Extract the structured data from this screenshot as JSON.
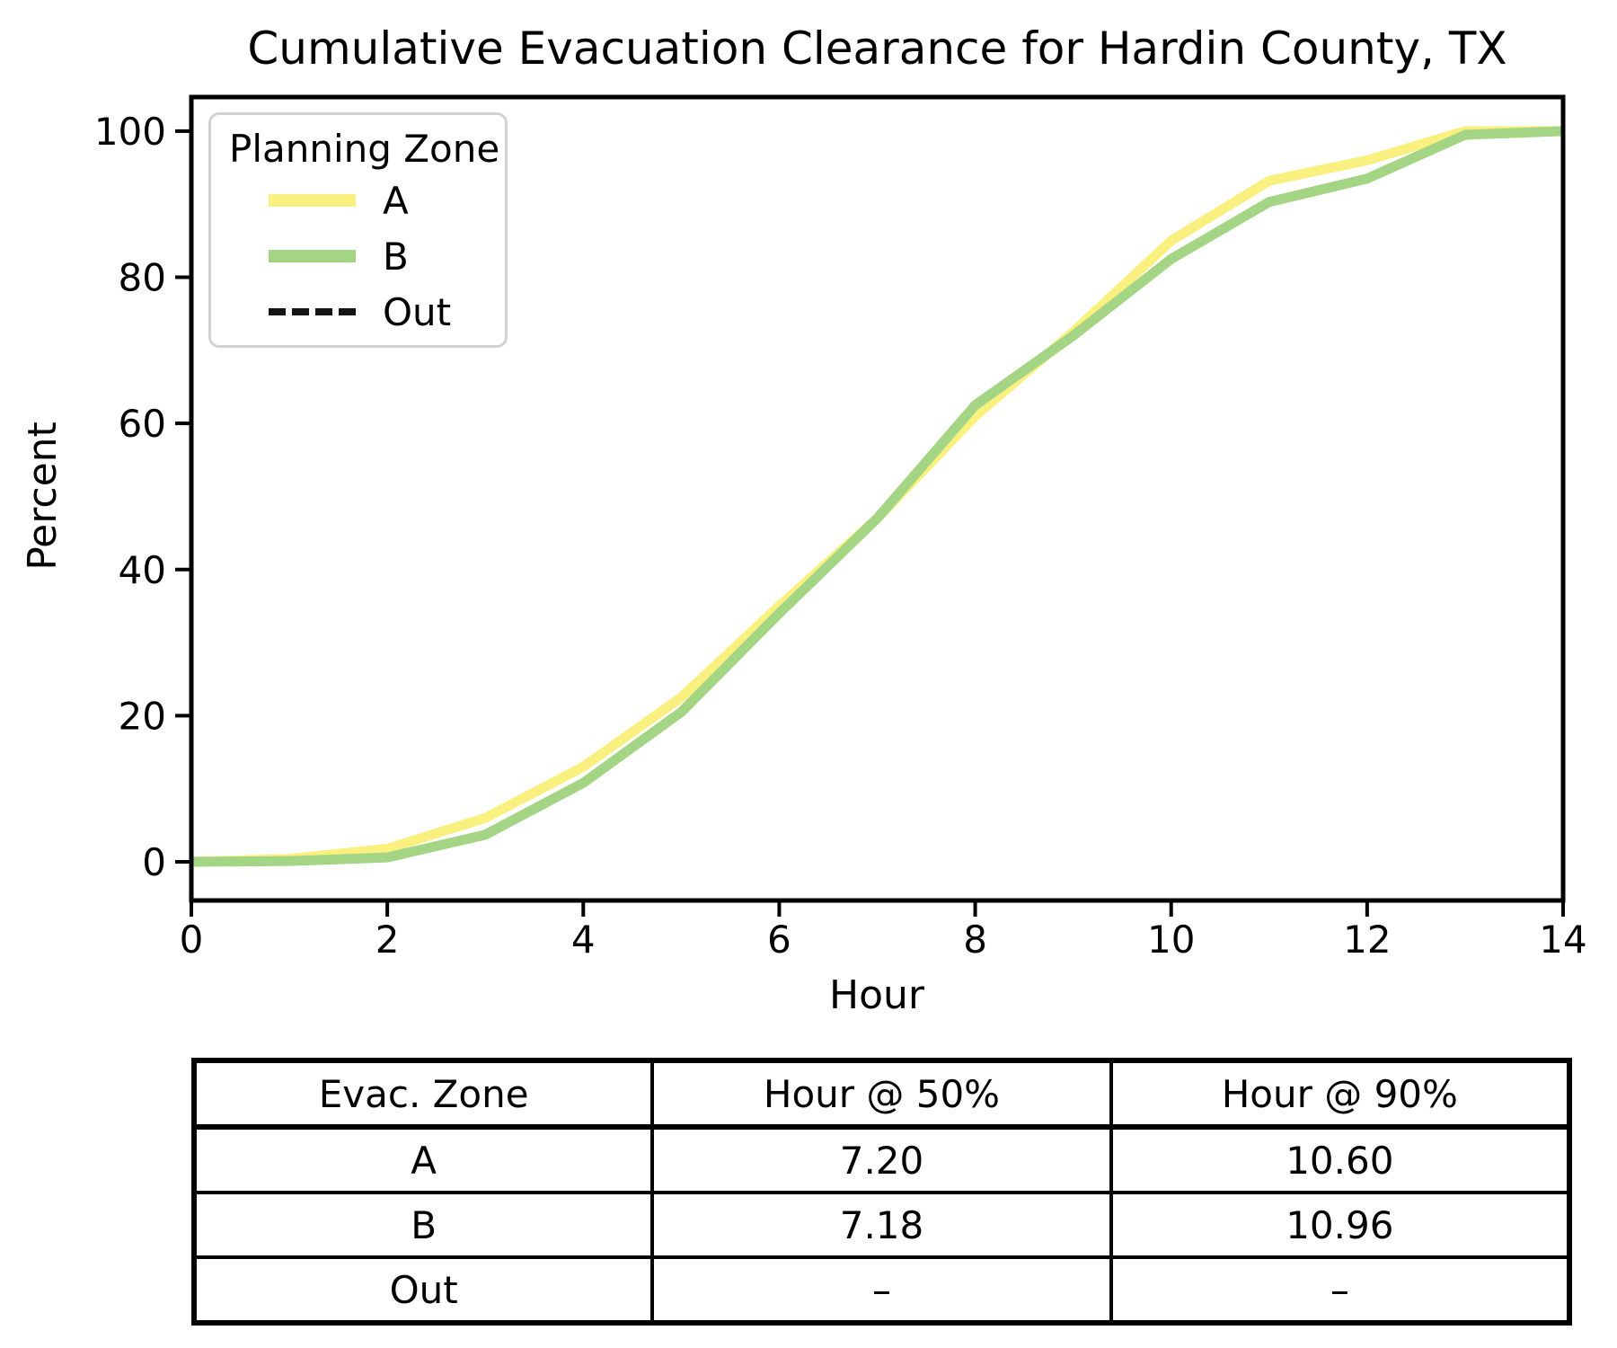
{
  "title": "Cumulative Evacuation Clearance for Hardin County, TX",
  "chart_data": {
    "type": "line",
    "x": [
      0,
      1,
      2,
      3,
      4,
      5,
      6,
      7,
      8,
      9,
      10,
      11,
      12,
      13,
      14
    ],
    "series": [
      {
        "name": "A",
        "color": "#f9f07f",
        "linestyle": "solid",
        "values": [
          0,
          0.4,
          1.8,
          6,
          13,
          22.5,
          35,
          47,
          61,
          72.5,
          85,
          93.2,
          96,
          100,
          100
        ]
      },
      {
        "name": "B",
        "color": "#a3d584",
        "linestyle": "solid",
        "values": [
          0,
          0.1,
          0.6,
          3.7,
          10.8,
          20.5,
          34,
          47,
          62.5,
          72,
          82.5,
          90.3,
          93.5,
          99.5,
          100
        ]
      },
      {
        "name": "Out",
        "color": "#141414",
        "linestyle": "dashed",
        "values": []
      }
    ],
    "title": "Cumulative Evacuation Clearance for Hardin County, TX",
    "xlabel": "Hour",
    "ylabel": "Percent",
    "x_ticks": [
      0,
      2,
      4,
      6,
      8,
      10,
      12,
      14
    ],
    "y_ticks": [
      0,
      20,
      40,
      60,
      80,
      100
    ],
    "xlim": [
      0,
      14
    ],
    "ylim": [
      -5.3,
      104.7
    ],
    "grid": false,
    "legend_title": "Planning Zone",
    "legend_position": "upper left"
  },
  "legend": {
    "title": "Planning Zone",
    "entries": [
      {
        "label": "A",
        "swatch": "solid",
        "color": "#f9f07f"
      },
      {
        "label": "B",
        "swatch": "solid",
        "color": "#a3d584"
      },
      {
        "label": "Out",
        "swatch": "dashed",
        "color": "#141414"
      }
    ]
  },
  "table": {
    "headers": [
      "Evac. Zone",
      "Hour @ 50%",
      "Hour @ 90%"
    ],
    "rows": [
      [
        "A",
        "7.20",
        "10.60"
      ],
      [
        "B",
        "7.18",
        "10.96"
      ],
      [
        "Out",
        "–",
        "–"
      ]
    ]
  }
}
